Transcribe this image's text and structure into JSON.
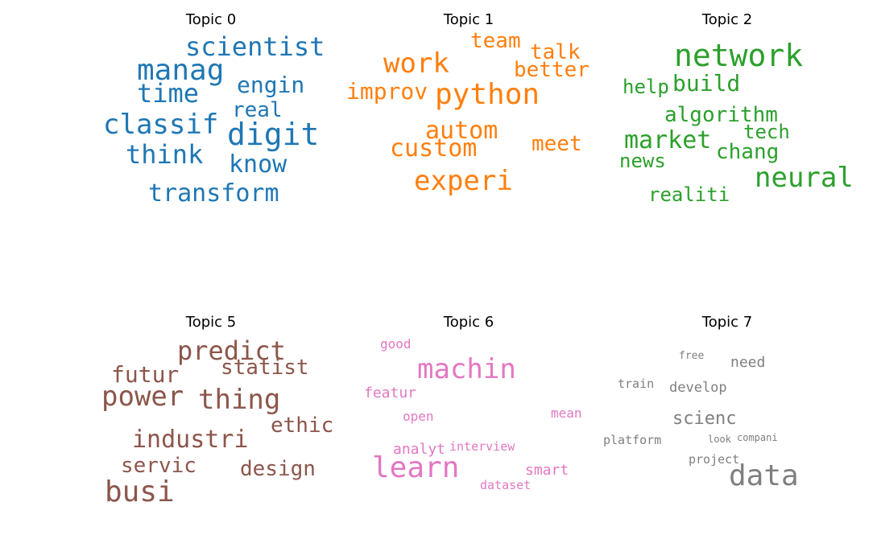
{
  "chart_data": [
    {
      "type": "wordcloud",
      "title": "Topic 0",
      "color": "#1f77b4",
      "words": [
        {
          "text": "scientist",
          "weight": 32
        },
        {
          "text": "manag",
          "weight": 36
        },
        {
          "text": "engin",
          "weight": 28
        },
        {
          "text": "time",
          "weight": 32
        },
        {
          "text": "real",
          "weight": 26
        },
        {
          "text": "classif",
          "weight": 34
        },
        {
          "text": "digit",
          "weight": 38
        },
        {
          "text": "think",
          "weight": 32
        },
        {
          "text": "know",
          "weight": 30
        },
        {
          "text": "transform",
          "weight": 30
        }
      ]
    },
    {
      "type": "wordcloud",
      "title": "Topic 1",
      "color": "#ff7f0e",
      "words": [
        {
          "text": "team",
          "weight": 26
        },
        {
          "text": "work",
          "weight": 34
        },
        {
          "text": "talk",
          "weight": 26
        },
        {
          "text": "better",
          "weight": 26
        },
        {
          "text": "improv",
          "weight": 28
        },
        {
          "text": "python",
          "weight": 36
        },
        {
          "text": "autom",
          "weight": 30
        },
        {
          "text": "custom",
          "weight": 30
        },
        {
          "text": "meet",
          "weight": 26
        },
        {
          "text": "experi",
          "weight": 34
        }
      ]
    },
    {
      "type": "wordcloud",
      "title": "Topic 2",
      "color": "#2ca02c",
      "words": [
        {
          "text": "network",
          "weight": 38
        },
        {
          "text": "help",
          "weight": 24
        },
        {
          "text": "build",
          "weight": 28
        },
        {
          "text": "algorithm",
          "weight": 26
        },
        {
          "text": "market",
          "weight": 30
        },
        {
          "text": "tech",
          "weight": 24
        },
        {
          "text": "chang",
          "weight": 26
        },
        {
          "text": "news",
          "weight": 24
        },
        {
          "text": "neural",
          "weight": 34
        },
        {
          "text": "realiti",
          "weight": 24
        }
      ]
    },
    {
      "type": "wordcloud",
      "title": "Topic 5",
      "color": "#8c564b",
      "words": [
        {
          "text": "predict",
          "weight": 32
        },
        {
          "text": "futur",
          "weight": 28
        },
        {
          "text": "statist",
          "weight": 26
        },
        {
          "text": "power",
          "weight": 34
        },
        {
          "text": "thing",
          "weight": 34
        },
        {
          "text": "ethic",
          "weight": 26
        },
        {
          "text": "industri",
          "weight": 30
        },
        {
          "text": "servic",
          "weight": 26
        },
        {
          "text": "design",
          "weight": 26
        },
        {
          "text": "busi",
          "weight": 36
        }
      ]
    },
    {
      "type": "wordcloud",
      "title": "Topic 6",
      "color": "#e377c2",
      "words": [
        {
          "text": "good",
          "weight": 16
        },
        {
          "text": "machin",
          "weight": 34
        },
        {
          "text": "featur",
          "weight": 18
        },
        {
          "text": "open",
          "weight": 16
        },
        {
          "text": "mean",
          "weight": 16
        },
        {
          "text": "analyt",
          "weight": 18
        },
        {
          "text": "interview",
          "weight": 15
        },
        {
          "text": "learn",
          "weight": 36
        },
        {
          "text": "smart",
          "weight": 18
        },
        {
          "text": "dataset",
          "weight": 15
        }
      ]
    },
    {
      "type": "wordcloud",
      "title": "Topic 7",
      "color": "#7f7f7f",
      "words": [
        {
          "text": "free",
          "weight": 13
        },
        {
          "text": "need",
          "weight": 18
        },
        {
          "text": "train",
          "weight": 15
        },
        {
          "text": "develop",
          "weight": 17
        },
        {
          "text": "scienc",
          "weight": 22
        },
        {
          "text": "platform",
          "weight": 15
        },
        {
          "text": "look",
          "weight": 12
        },
        {
          "text": "compani",
          "weight": 12
        },
        {
          "text": "project",
          "weight": 15
        },
        {
          "text": "data",
          "weight": 36
        }
      ]
    }
  ]
}
